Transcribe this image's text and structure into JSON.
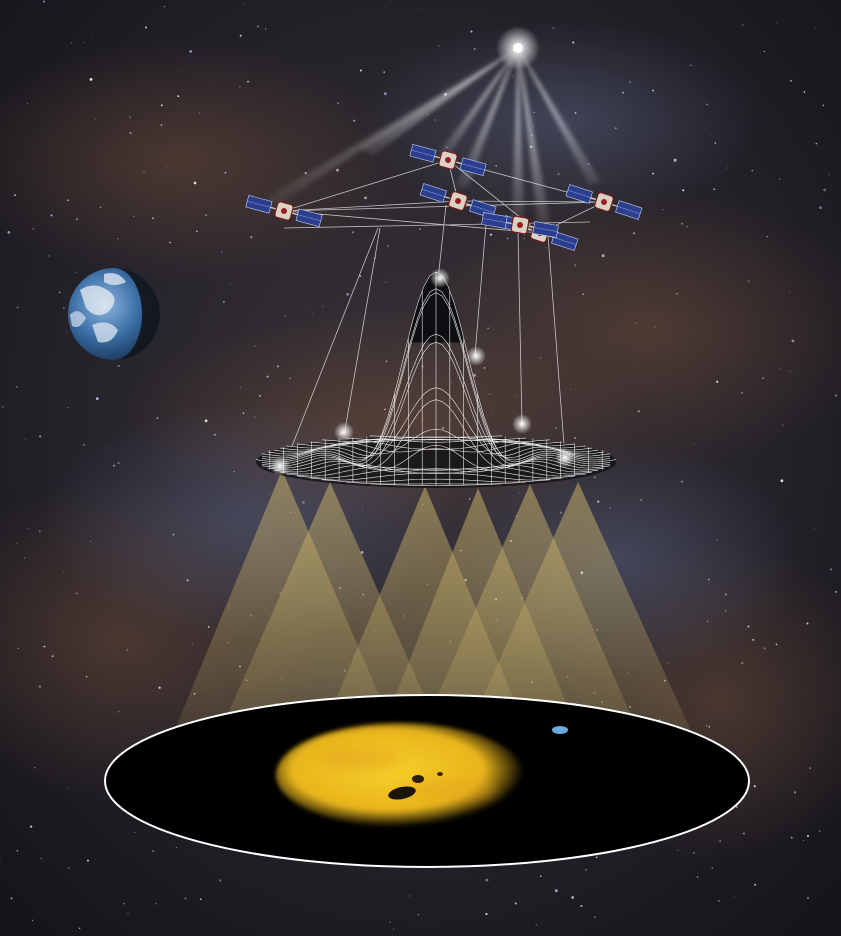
{
  "scene": {
    "subject": "space-interferometry-illustration",
    "elements": {
      "background": "milky-way-star-field",
      "earth": "earth-globe",
      "source_star": "bright-star",
      "spacecraft": [
        "spacecraft-1",
        "spacecraft-2",
        "spacecraft-3",
        "spacecraft-4",
        "spacecraft-5",
        "spacecraft-6"
      ],
      "interference_pattern": "wireframe-point-spread-function",
      "light_beams": "projection-cones",
      "image_disk": "reconstructed-image-disk",
      "star_image": "yellow-star-image",
      "planet": "small-blue-planet"
    }
  },
  "colors": {
    "space": "#1b1a20",
    "dust": "#5a3e2f",
    "beam": "#c9b26a",
    "star_yellow": "#f0c419",
    "star_orange": "#e2a01c",
    "planet_blue": "#69a9de",
    "disk_rim": "#ffffff",
    "disk_fill": "#000000",
    "earth_blue": "#3b6fa6"
  }
}
